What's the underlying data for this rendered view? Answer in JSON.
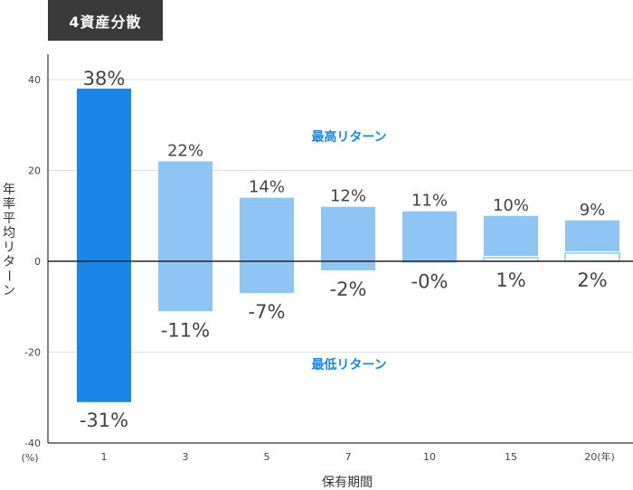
{
  "tag": "4資産分散",
  "chart_data": {
    "type": "bar",
    "xlabel": "保有期間",
    "ylabel": "年率平均リターン",
    "y_unit": "(%)",
    "x_unit": "(年)",
    "categories": [
      "1",
      "3",
      "5",
      "7",
      "10",
      "15",
      "20"
    ],
    "ylim": [
      -40,
      40
    ],
    "yticks": [
      40,
      20,
      0,
      -20,
      -40
    ],
    "grid": true,
    "series": [
      {
        "name": "最高リターン",
        "values": [
          38,
          22,
          14,
          12,
          11,
          10,
          9
        ],
        "labels": [
          "38%",
          "22%",
          "14%",
          "12%",
          "11%",
          "10%",
          "9%"
        ]
      },
      {
        "name": "最低リターン",
        "values": [
          -31,
          -11,
          -7,
          -2,
          -0.3,
          1,
          2
        ],
        "labels": [
          "-31%",
          "-11%",
          "-7%",
          "-2%",
          "-0%",
          "1%",
          "2%"
        ]
      }
    ],
    "colors": {
      "highlight": "#1a87e8",
      "bar": "#8ec5f5",
      "annotation": "#1a87e8"
    }
  }
}
